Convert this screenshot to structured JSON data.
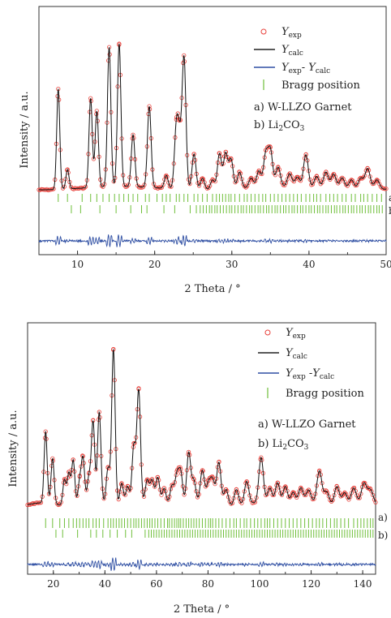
{
  "chart_data": [
    {
      "type": "line",
      "panel": "top",
      "xlabel": "2 Theta / °",
      "ylabel": "Intensity / a.u.",
      "xlim": [
        5,
        50
      ],
      "xticks": [
        "10",
        "20",
        "30",
        "40",
        "50"
      ],
      "x_tick_values": [
        10,
        20,
        30,
        40,
        50
      ],
      "y_ticks_shown": false,
      "legend": [
        {
          "name_base": "Y",
          "sub": "exp",
          "marker": "circle",
          "color": "#e8403a"
        },
        {
          "name_base": "Y",
          "sub": "calc",
          "marker": "line",
          "color": "#222222"
        },
        {
          "name_base": "Y",
          "sub": "exp",
          "mid": "- ",
          "name_base2": "Y",
          "sub2": "calc",
          "marker": "line",
          "color": "#2f4fa3"
        },
        {
          "text": "Bragg position",
          "marker": "tick",
          "color": "#6fbf3a"
        }
      ],
      "phase_a": "a) W-LLZO Garnet",
      "phase_b_main": "b) Li",
      "phase_b_sub1": "2",
      "phase_b_mid": "CO",
      "phase_b_sub2": "3",
      "row_labels": [
        "a)",
        "b)"
      ],
      "peaks": [
        {
          "x": 7.5,
          "y": 0.62
        },
        {
          "x": 8.7,
          "y": 0.12
        },
        {
          "x": 11.7,
          "y": 0.55
        },
        {
          "x": 12.5,
          "y": 0.47
        },
        {
          "x": 14.1,
          "y": 0.86
        },
        {
          "x": 15.4,
          "y": 0.88
        },
        {
          "x": 17.2,
          "y": 0.32
        },
        {
          "x": 19.3,
          "y": 0.5
        },
        {
          "x": 21.5,
          "y": 0.08
        },
        {
          "x": 22.8,
          "y": 0.35
        },
        {
          "x": 23.2,
          "y": 0.28
        },
        {
          "x": 23.8,
          "y": 0.81
        },
        {
          "x": 25.1,
          "y": 0.22
        },
        {
          "x": 26.2,
          "y": 0.07
        },
        {
          "x": 27.5,
          "y": 0.06
        },
        {
          "x": 28.4,
          "y": 0.22
        },
        {
          "x": 29.2,
          "y": 0.22
        },
        {
          "x": 29.9,
          "y": 0.18
        },
        {
          "x": 31.0,
          "y": 0.1
        },
        {
          "x": 32.5,
          "y": 0.06
        },
        {
          "x": 33.5,
          "y": 0.1
        },
        {
          "x": 34.4,
          "y": 0.2
        },
        {
          "x": 35.0,
          "y": 0.22
        },
        {
          "x": 36.0,
          "y": 0.12
        },
        {
          "x": 37.5,
          "y": 0.08
        },
        {
          "x": 38.5,
          "y": 0.06
        },
        {
          "x": 39.6,
          "y": 0.2
        },
        {
          "x": 41.0,
          "y": 0.07
        },
        {
          "x": 42.2,
          "y": 0.1
        },
        {
          "x": 43.2,
          "y": 0.09
        },
        {
          "x": 44.3,
          "y": 0.07
        },
        {
          "x": 45.5,
          "y": 0.06
        },
        {
          "x": 46.7,
          "y": 0.07
        },
        {
          "x": 47.6,
          "y": 0.13
        },
        {
          "x": 48.8,
          "y": 0.06
        }
      ],
      "bragg_a": [
        7.5,
        8.7,
        10.6,
        11.7,
        12.5,
        13.3,
        14.1,
        14.8,
        15.4,
        16.0,
        16.6,
        17.2,
        17.8,
        18.8,
        19.3,
        20.3,
        21.0,
        21.5,
        22.0,
        22.8,
        23.2,
        23.8,
        24.3,
        25.1,
        25.6,
        26.2,
        26.8,
        27.5,
        28.0,
        28.4,
        28.8,
        29.2,
        29.6,
        29.9,
        30.4,
        31.0,
        31.6,
        32.0,
        32.5,
        33.0,
        33.5,
        34.0,
        34.4,
        35.0,
        35.5,
        36.0,
        36.5,
        37.0,
        37.5,
        38.0,
        38.5,
        39.0,
        39.6,
        40.1,
        40.6,
        41.0,
        41.5,
        42.2,
        42.7,
        43.2,
        43.7,
        44.3,
        44.8,
        45.5,
        46.0,
        46.7,
        47.1,
        47.6,
        48.2,
        48.8,
        49.4
      ],
      "bragg_b": [
        9.2,
        10.4,
        12.9,
        15.0,
        16.9,
        18.3,
        19.0,
        21.2,
        22.6,
        24.6,
        25.4,
        25.9,
        26.3,
        26.7,
        27.1,
        27.4,
        27.8,
        28.1,
        28.5,
        28.9,
        29.3,
        29.7,
        30.0,
        30.4,
        30.8,
        31.2,
        31.5,
        31.9,
        32.3,
        32.6,
        33.0,
        33.4,
        33.7,
        34.1,
        34.5,
        34.8,
        35.2,
        35.6,
        35.9,
        36.3,
        36.7,
        37.0,
        37.4,
        37.8,
        38.1,
        38.5,
        38.9,
        39.2,
        39.6,
        40.0,
        40.3,
        40.7,
        41.1,
        41.4,
        41.8,
        42.2,
        42.5,
        42.9,
        43.3,
        43.6,
        44.0,
        44.4,
        44.7,
        45.1,
        45.5,
        45.8,
        46.2,
        46.6,
        46.9,
        47.3,
        47.7,
        48.0,
        48.4,
        48.8,
        49.1,
        49.5
      ]
    },
    {
      "type": "line",
      "panel": "bottom",
      "xlabel": "2 Theta / °",
      "ylabel": "Intensity / a.u.",
      "xlim": [
        10,
        145
      ],
      "xticks": [
        "20",
        "40",
        "60",
        "80",
        "100",
        "120",
        "140"
      ],
      "x_tick_values": [
        20,
        40,
        60,
        80,
        100,
        120,
        140
      ],
      "y_ticks_shown": false,
      "legend": [
        {
          "name_base": "Y",
          "sub": "exp",
          "marker": "circle",
          "color": "#e8403a"
        },
        {
          "name_base": "Y",
          "sub": "calc",
          "marker": "line",
          "color": "#222222"
        },
        {
          "name_base": "Y",
          "sub": "exp",
          "mid": " -",
          "name_base2": "Y",
          "sub2": "calc",
          "marker": "line",
          "color": "#2f4fa3"
        },
        {
          "text": "Bragg position",
          "marker": "tick",
          "color": "#6fbf3a"
        }
      ],
      "phase_a": "a) W-LLZO Garnet",
      "phase_b_main": "b) Li",
      "phase_b_sub1": "2",
      "phase_b_mid": "CO",
      "phase_b_sub2": "3",
      "row_labels": [
        "a)",
        "b)"
      ],
      "peaks": [
        {
          "x": 17.0,
          "y": 0.44
        },
        {
          "x": 19.7,
          "y": 0.28
        },
        {
          "x": 24.3,
          "y": 0.16
        },
        {
          "x": 26.0,
          "y": 0.2
        },
        {
          "x": 27.7,
          "y": 0.28
        },
        {
          "x": 30.2,
          "y": 0.14
        },
        {
          "x": 31.5,
          "y": 0.28
        },
        {
          "x": 33.8,
          "y": 0.16
        },
        {
          "x": 35.4,
          "y": 0.5
        },
        {
          "x": 37.8,
          "y": 0.56
        },
        {
          "x": 41.2,
          "y": 0.22
        },
        {
          "x": 43.3,
          "y": 0.96
        },
        {
          "x": 46.5,
          "y": 0.14
        },
        {
          "x": 48.8,
          "y": 0.12
        },
        {
          "x": 51.2,
          "y": 0.36
        },
        {
          "x": 53.1,
          "y": 0.7
        },
        {
          "x": 56.4,
          "y": 0.14
        },
        {
          "x": 58.3,
          "y": 0.14
        },
        {
          "x": 60.5,
          "y": 0.16
        },
        {
          "x": 63.0,
          "y": 0.1
        },
        {
          "x": 66.0,
          "y": 0.12
        },
        {
          "x": 67.9,
          "y": 0.18
        },
        {
          "x": 69.4,
          "y": 0.2
        },
        {
          "x": 72.5,
          "y": 0.32
        },
        {
          "x": 74.5,
          "y": 0.14
        },
        {
          "x": 77.8,
          "y": 0.2
        },
        {
          "x": 80.2,
          "y": 0.12
        },
        {
          "x": 81.8,
          "y": 0.14
        },
        {
          "x": 84.2,
          "y": 0.26
        },
        {
          "x": 87.0,
          "y": 0.1
        },
        {
          "x": 91.0,
          "y": 0.1
        },
        {
          "x": 95.0,
          "y": 0.14
        },
        {
          "x": 100.6,
          "y": 0.28
        },
        {
          "x": 104.0,
          "y": 0.1
        },
        {
          "x": 107.0,
          "y": 0.14
        },
        {
          "x": 110.0,
          "y": 0.12
        },
        {
          "x": 113.0,
          "y": 0.08
        },
        {
          "x": 116.0,
          "y": 0.1
        },
        {
          "x": 119.0,
          "y": 0.08
        },
        {
          "x": 123.2,
          "y": 0.2
        },
        {
          "x": 126.0,
          "y": 0.08
        },
        {
          "x": 130.0,
          "y": 0.12
        },
        {
          "x": 133.0,
          "y": 0.08
        },
        {
          "x": 136.5,
          "y": 0.1
        },
        {
          "x": 140.5,
          "y": 0.12
        },
        {
          "x": 143.0,
          "y": 0.08
        }
      ],
      "bragg_a": [
        17,
        19.7,
        22.5,
        24.3,
        26,
        27.7,
        29,
        30.2,
        31.5,
        32.7,
        33.8,
        35.4,
        36.6,
        37.8,
        39.5,
        41.2,
        42.3,
        43.3,
        44.4,
        45.5,
        46.5,
        47.6,
        48.8,
        50,
        51.2,
        52.1,
        53.1,
        54.2,
        55.3,
        56.4,
        57.4,
        58.3,
        59.4,
        60.5,
        61.7,
        63,
        64.3,
        65,
        66,
        67,
        67.9,
        68.7,
        69.4,
        70.4,
        71.5,
        72.5,
        73.5,
        74.5,
        75.5,
        76.6,
        77.8,
        79,
        80.2,
        81,
        81.8,
        83,
        84.2,
        85.5,
        87,
        88.5,
        90,
        91,
        92.5,
        94,
        95,
        96.5,
        98,
        99.3,
        100.6,
        102,
        103,
        104,
        105.5,
        107,
        108.5,
        110,
        111.5,
        113,
        114.5,
        116,
        117.5,
        119,
        120.5,
        122,
        123.2,
        124.5,
        126,
        127.5,
        129,
        130,
        131.5,
        133,
        134.5,
        136.5,
        138,
        139.3,
        140.5,
        141.8,
        143,
        144
      ],
      "bragg_b": [
        21,
        23.6,
        29.4,
        34.5,
        36.7,
        39.2,
        42,
        44.8,
        48,
        50.4,
        55.6,
        57,
        58,
        59,
        60,
        61,
        62,
        63,
        64,
        65,
        66,
        67,
        68,
        69,
        70,
        71,
        72,
        73,
        74,
        75,
        76,
        77,
        78,
        79,
        80,
        81,
        82,
        83,
        84,
        85,
        86,
        87,
        88,
        89,
        90,
        91,
        92,
        93,
        94,
        95,
        96,
        97,
        98,
        99,
        100,
        101,
        102,
        103,
        104,
        105,
        106,
        107,
        108,
        109,
        110,
        111,
        112,
        113,
        114,
        115,
        116,
        117,
        118,
        119,
        120,
        121,
        122,
        123,
        124,
        125,
        126,
        127,
        128,
        129,
        130,
        131,
        132,
        133,
        134,
        135,
        136,
        137,
        138,
        139,
        140,
        141,
        142,
        143,
        144
      ]
    }
  ]
}
